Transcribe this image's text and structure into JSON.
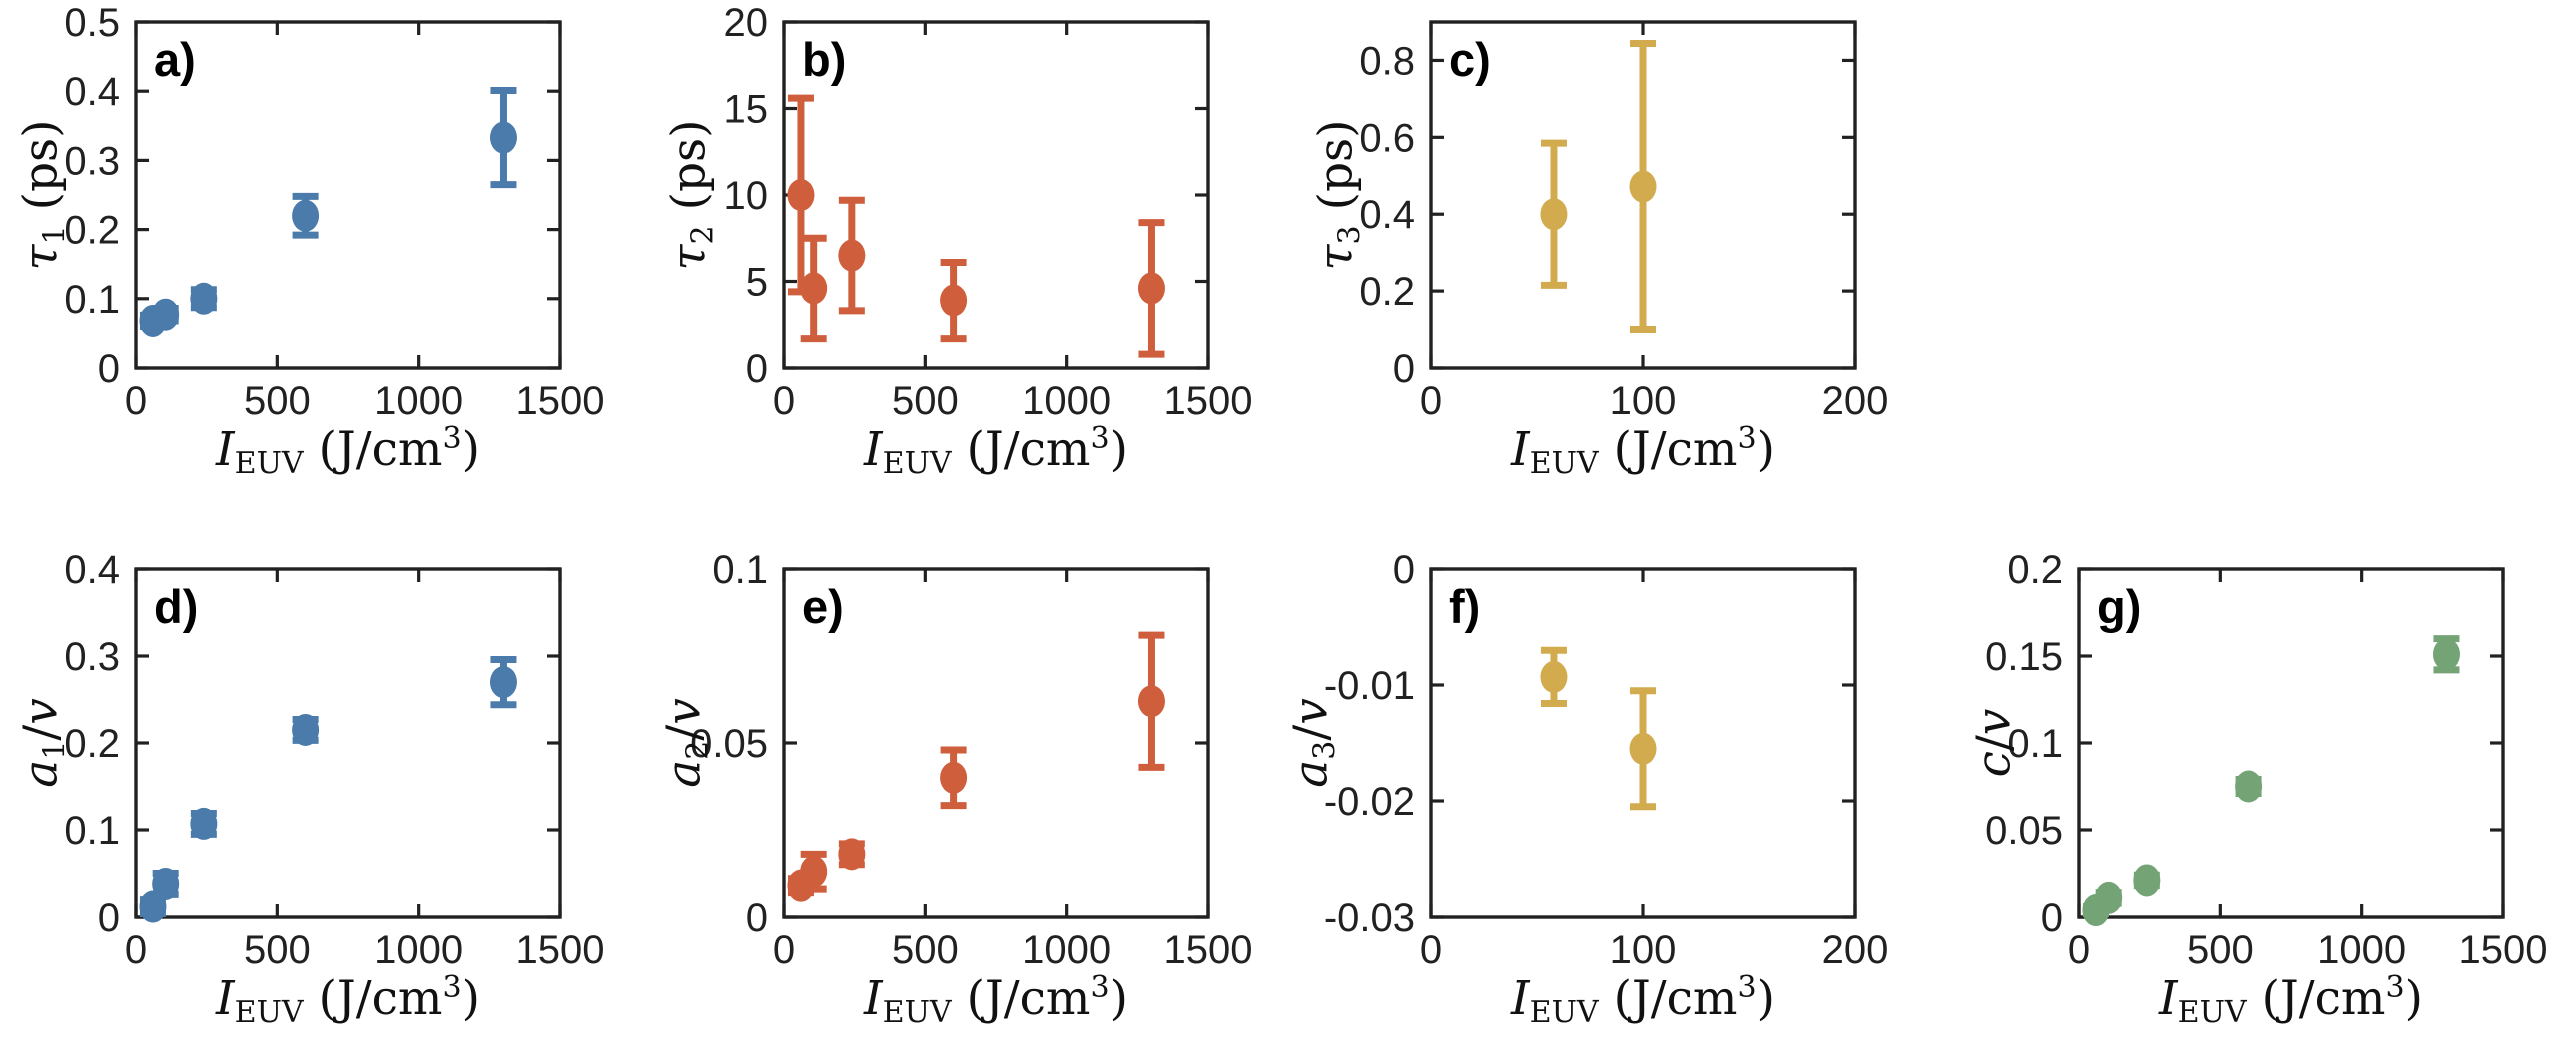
{
  "figure": {
    "background": "#ffffff",
    "axis_color": "#212121"
  },
  "chart_data": {
    "type": "scatter",
    "grid": false,
    "legend": null,
    "xlabel_segments": [
      {
        "t": "I",
        "i": true
      },
      {
        "t": "EUV",
        "sub": true
      },
      {
        "t": " (J/cm"
      },
      {
        "t": "3",
        "sup": true
      },
      {
        "t": ")"
      }
    ],
    "panels": [
      {
        "id": "a",
        "label": "a)",
        "ylabel_segments": [
          {
            "t": "τ",
            "i": true
          },
          {
            "t": "1",
            "sub": true
          },
          {
            "t": " (ps)"
          }
        ],
        "color": "#4A7BAB",
        "xlim": [
          0,
          1500
        ],
        "ylim": [
          0,
          0.5
        ],
        "xticks": [
          0,
          500,
          1000,
          1500
        ],
        "yticks": [
          0,
          0.1,
          0.2,
          0.3,
          0.4,
          0.5
        ],
        "x": [
          60,
          105,
          240,
          600,
          1300
        ],
        "y": [
          0.068,
          0.077,
          0.1,
          0.22,
          0.333
        ],
        "yerr": [
          0.008,
          0.009,
          0.013,
          0.028,
          0.068
        ]
      },
      {
        "id": "b",
        "label": "b)",
        "ylabel_segments": [
          {
            "t": "τ",
            "i": true
          },
          {
            "t": "2",
            "sub": true
          },
          {
            "t": " (ps)"
          }
        ],
        "color": "#CF5E3C",
        "xlim": [
          0,
          1500
        ],
        "ylim": [
          0,
          20
        ],
        "xticks": [
          0,
          500,
          1000,
          1500
        ],
        "yticks": [
          0,
          5,
          10,
          15,
          20
        ],
        "x": [
          60,
          105,
          240,
          600,
          1300
        ],
        "y": [
          10.0,
          4.6,
          6.5,
          3.9,
          4.6
        ],
        "yerr": [
          5.6,
          2.9,
          3.2,
          2.2,
          3.8
        ]
      },
      {
        "id": "c",
        "label": "c)",
        "ylabel_segments": [
          {
            "t": "τ",
            "i": true
          },
          {
            "t": "3",
            "sub": true
          },
          {
            "t": " (ps)"
          }
        ],
        "color": "#D2AB4F",
        "xlim": [
          0,
          200
        ],
        "ylim": [
          0,
          0.9
        ],
        "xticks": [
          0,
          100,
          200
        ],
        "yticks": [
          0,
          0.2,
          0.4,
          0.6,
          0.8
        ],
        "x": [
          58,
          100
        ],
        "y": [
          0.4,
          0.472
        ],
        "yerr": [
          0.185,
          0.372
        ]
      },
      {
        "id": "d",
        "label": "d)",
        "ylabel_segments": [
          {
            "t": "a",
            "i": true
          },
          {
            "t": "1",
            "sub": true
          },
          {
            "t": "/"
          },
          {
            "t": "v",
            "i": true
          }
        ],
        "color": "#4A7BAB",
        "xlim": [
          0,
          1500
        ],
        "ylim": [
          0,
          0.4
        ],
        "xticks": [
          0,
          500,
          1000,
          1500
        ],
        "yticks": [
          0,
          0.1,
          0.2,
          0.3,
          0.4
        ],
        "x": [
          60,
          105,
          240,
          600,
          1300
        ],
        "y": [
          0.012,
          0.038,
          0.107,
          0.215,
          0.27
        ],
        "yerr": [
          0.008,
          0.012,
          0.012,
          0.012,
          0.026
        ]
      },
      {
        "id": "e",
        "label": "e)",
        "ylabel_segments": [
          {
            "t": "a",
            "i": true
          },
          {
            "t": "2",
            "sub": true
          },
          {
            "t": "/"
          },
          {
            "t": "v",
            "i": true
          }
        ],
        "color": "#CF5E3C",
        "xlim": [
          0,
          1500
        ],
        "ylim": [
          0,
          0.1
        ],
        "xticks": [
          0,
          500,
          1000,
          1500
        ],
        "yticks": [
          0,
          0.05,
          0.1
        ],
        "x": [
          60,
          105,
          240,
          600,
          1300
        ],
        "y": [
          0.009,
          0.013,
          0.018,
          0.04,
          0.062
        ],
        "yerr": [
          0.002,
          0.005,
          0.003,
          0.008,
          0.019
        ]
      },
      {
        "id": "f",
        "label": "f)",
        "ylabel_segments": [
          {
            "t": "a",
            "i": true
          },
          {
            "t": "3",
            "sub": true
          },
          {
            "t": "/"
          },
          {
            "t": "v",
            "i": true
          }
        ],
        "color": "#D2AB4F",
        "xlim": [
          0,
          200
        ],
        "ylim": [
          -0.03,
          0
        ],
        "xticks": [
          0,
          100,
          200
        ],
        "yticks": [
          -0.03,
          -0.02,
          -0.01,
          0
        ],
        "x": [
          58,
          100
        ],
        "y": [
          -0.0093,
          -0.0155
        ],
        "yerr": [
          0.0023,
          0.005
        ]
      },
      {
        "id": "g",
        "label": "g)",
        "ylabel_segments": [
          {
            "t": "c",
            "i": true
          },
          {
            "t": "/"
          },
          {
            "t": "v",
            "i": true
          }
        ],
        "color": "#74A376",
        "xlim": [
          0,
          1500
        ],
        "ylim": [
          0,
          0.2
        ],
        "xticks": [
          0,
          500,
          1000,
          1500
        ],
        "yticks": [
          0,
          0.05,
          0.1,
          0.15,
          0.2
        ],
        "x": [
          60,
          105,
          240,
          600,
          1300
        ],
        "y": [
          0.004,
          0.011,
          0.021,
          0.075,
          0.151
        ],
        "yerr": [
          0.002,
          0.003,
          0.003,
          0.004,
          0.009
        ]
      }
    ]
  }
}
